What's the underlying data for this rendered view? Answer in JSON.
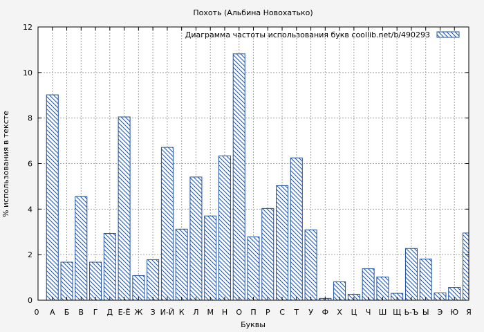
{
  "chart_data": {
    "type": "bar",
    "title": "Похоть (Альбина Новохатько)",
    "xlabel": "Буквы",
    "ylabel": "% использования в тексте",
    "legend": "Диаграмма частоты использования букв  coollib.net/b/490293",
    "legend_position": "top-right",
    "grid": true,
    "ylim": [
      0,
      12
    ],
    "yticks": [
      "0",
      "2",
      "4",
      "6",
      "8",
      "10",
      "12"
    ],
    "x_start_label": "0",
    "categories": [
      "А",
      "Б",
      "В",
      "Г",
      "Д",
      "Е-Ё",
      "Ж",
      "З",
      "И-Й",
      "К",
      "Л",
      "М",
      "Н",
      "О",
      "П",
      "Р",
      "С",
      "Т",
      "У",
      "Ф",
      "Х",
      "Ц",
      "Ч",
      "Ш",
      "Щ",
      "Ь-Ъ",
      "Ы",
      "Э",
      "Ю",
      "Я"
    ],
    "values": [
      9.02,
      1.67,
      4.55,
      1.67,
      2.93,
      8.05,
      1.08,
      1.78,
      6.71,
      3.12,
      5.41,
      3.7,
      6.34,
      10.82,
      2.78,
      4.03,
      5.03,
      6.25,
      3.09,
      0.08,
      0.81,
      0.26,
      1.38,
      1.02,
      0.3,
      2.27,
      1.81,
      0.32,
      0.56,
      2.95
    ],
    "bar_color": "#1f4f9f"
  }
}
